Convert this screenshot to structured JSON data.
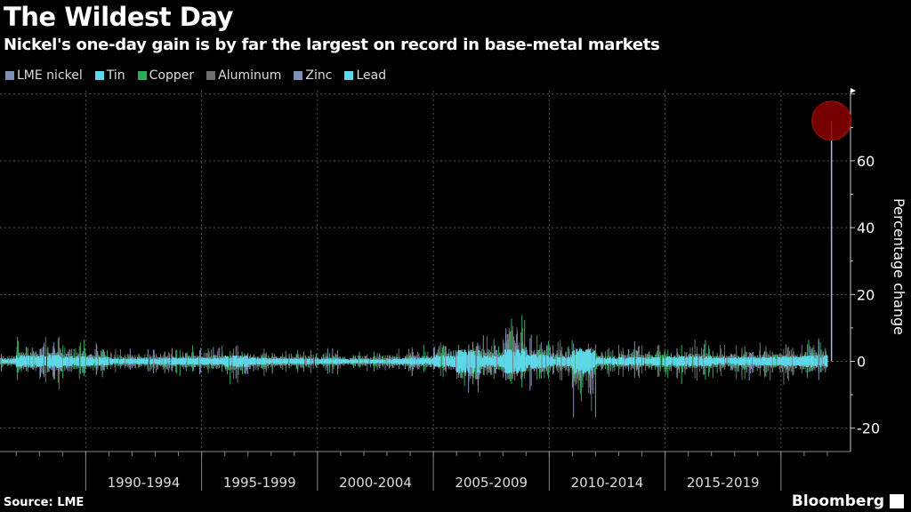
{
  "title": "The Wildest Day",
  "subtitle": "Nickel's one-day gain is by far the largest on record in base-metal markets",
  "source": "Source: LME",
  "brand": "Bloomberg",
  "chart_data": {
    "type": "line",
    "ylabel": "Percentage change",
    "ylim": [
      -27,
      81
    ],
    "xlim": [
      1986.3,
      2023.0
    ],
    "y_ticks": [
      "-20",
      "0",
      "20",
      "40",
      "60"
    ],
    "y_tick_values": [
      -20,
      0,
      20,
      40,
      60
    ],
    "x_tick_labels": [
      "1990-1994",
      "1995-1999",
      "2000-2004",
      "2005-2009",
      "2010-2014",
      "2015-2019"
    ],
    "x_tick_starts": [
      1990,
      1995,
      2000,
      2005,
      2010,
      2015
    ],
    "grid": true,
    "legend_position": "top-left",
    "series": [
      {
        "name": "LME nickel",
        "color": "#7f8fb5"
      },
      {
        "name": "Tin",
        "color": "#5ed8e8"
      },
      {
        "name": "Copper",
        "color": "#2eaa5c"
      },
      {
        "name": "Aluminum",
        "color": "#6e6e6e"
      },
      {
        "name": "Zinc",
        "color": "#7f8fb5"
      },
      {
        "name": "Lead",
        "color": "#5ed8e8"
      }
    ],
    "yearly_daily_change_range": {
      "years": [
        1986,
        1987,
        1988,
        1989,
        1990,
        1991,
        1992,
        1993,
        1994,
        1995,
        1996,
        1997,
        1998,
        1999,
        2000,
        2001,
        2002,
        2003,
        2004,
        2005,
        2006,
        2007,
        2008,
        2009,
        2010,
        2011,
        2012,
        2013,
        2014,
        2015,
        2016,
        2017,
        2018,
        2019,
        2020,
        2021
      ],
      "low": [
        -3,
        -6,
        -9,
        -6,
        -5,
        -4,
        -4,
        -5,
        -5,
        -4,
        -8,
        -5,
        -4,
        -4,
        -4,
        -3,
        -3,
        -4,
        -5,
        -5,
        -16,
        -7,
        -10,
        -9,
        -6,
        -17,
        -5,
        -5,
        -5,
        -7,
        -6,
        -5,
        -6,
        -6,
        -7,
        -6
      ],
      "high": [
        3,
        8,
        8,
        7,
        6,
        4,
        4,
        4,
        5,
        5,
        5,
        4,
        4,
        4,
        4,
        3,
        3,
        4,
        5,
        8,
        10,
        8,
        17,
        10,
        7,
        7,
        5,
        6,
        6,
        5,
        7,
        5,
        5,
        6,
        6,
        8
      ]
    },
    "highlight": {
      "series": "LME nickel",
      "x": 2022.18,
      "y": 72,
      "color": "#8b0000"
    }
  }
}
